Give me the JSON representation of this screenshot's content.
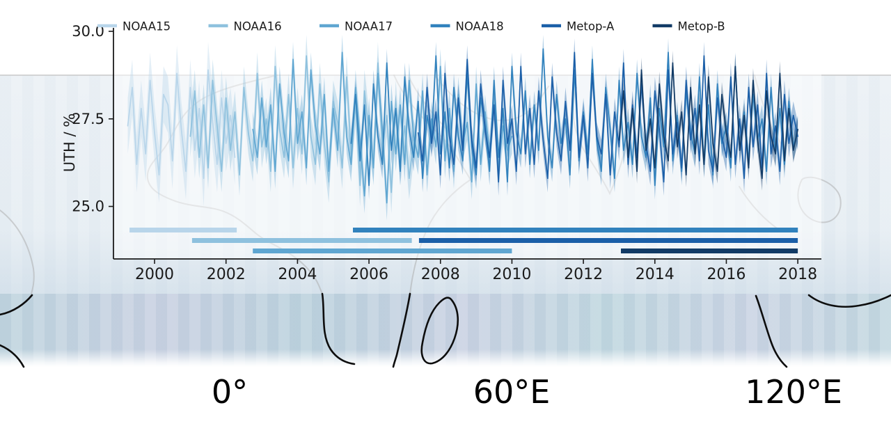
{
  "colors": {
    "axis": "#1a1a1a",
    "map_gridline": "#c8c8c8",
    "coast_upper": "#a9a9a9",
    "coast_band": "#0d0d0d",
    "plot_background": "rgba(255,255,255,0.5)",
    "legend_text": "#2b2b2b"
  },
  "map": {
    "lon_labels": [
      {
        "label": "0°"
      },
      {
        "label": "60°E"
      },
      {
        "label": "120°E"
      }
    ]
  },
  "chart_data": {
    "type": "line",
    "title": "",
    "ylabel": "UTH / %",
    "xlabel": "",
    "grid": false,
    "legend_position": "top",
    "x_range": [
      1998.85,
      2018.66
    ],
    "y_range": [
      23.5,
      30.0
    ],
    "x_ticks": [
      {
        "value": 2000,
        "label": "2000"
      },
      {
        "value": 2002,
        "label": "2002"
      },
      {
        "value": 2004,
        "label": "2004"
      },
      {
        "value": 2006,
        "label": "2006"
      },
      {
        "value": 2008,
        "label": "2008"
      },
      {
        "value": 2010,
        "label": "2010"
      },
      {
        "value": 2012,
        "label": "2012"
      },
      {
        "value": 2014,
        "label": "2014"
      },
      {
        "value": 2016,
        "label": "2016"
      },
      {
        "value": 2018,
        "label": "2018"
      }
    ],
    "y_ticks": [
      {
        "value": 25.0,
        "label": "25.0"
      },
      {
        "value": 27.5,
        "label": "27.5"
      },
      {
        "value": 30.0,
        "label": "30.0"
      }
    ],
    "legend": [
      "NOAA15",
      "NOAA16",
      "NOAA17",
      "NOAA18",
      "Metop-A",
      "Metop-B"
    ],
    "series": [
      {
        "name": "NOAA15",
        "color": "#b8d5ea",
        "start": 1999.25,
        "step": 0.125,
        "band": 0.8,
        "values": [
          27.3,
          28.4,
          26.2,
          27.8,
          26.5,
          28.6,
          27.1,
          25.9,
          28.2,
          27.9,
          26.3,
          28.8,
          27.2,
          26.0,
          28.4,
          26.6,
          27.8,
          25.8,
          28.9,
          27.4,
          26.2,
          28.1,
          26.8,
          27.6,
          26.4
        ]
      },
      {
        "name": "NOAA16",
        "color": "#8ec1de",
        "start": 2001.0,
        "step": 0.125,
        "band": 0.6,
        "values": [
          27.0,
          28.3,
          26.4,
          27.9,
          26.1,
          28.6,
          27.3,
          26.0,
          28.1,
          26.6,
          27.7,
          25.9,
          28.4,
          27.1,
          26.3,
          28.8,
          26.7,
          27.5,
          26.0,
          29.0,
          27.2,
          26.4,
          28.2,
          26.1,
          27.8,
          26.5,
          29.3,
          27.0,
          26.2,
          28.5,
          26.8,
          25.7,
          28.0,
          27.4,
          26.1,
          28.7,
          26.5,
          27.9,
          25.6,
          28.3,
          27.1,
          26.3,
          29.1,
          26.6,
          27.6,
          25.4,
          28.0,
          26.2,
          27.3,
          25.8,
          26.9
        ]
      },
      {
        "name": "NOAA17",
        "color": "#5fa6d1",
        "start": 2002.75,
        "step": 0.125,
        "band": 0.5,
        "values": [
          27.2,
          26.4,
          28.1,
          26.7,
          27.9,
          26.0,
          28.5,
          27.1,
          26.3,
          29.2,
          26.8,
          27.7,
          26.1,
          28.9,
          27.3,
          26.5,
          28.2,
          26.0,
          27.8,
          26.6,
          29.4,
          27.0,
          26.2,
          28.4,
          26.9,
          25.3,
          27.6,
          26.1,
          28.8,
          27.2,
          25.1,
          28.0,
          26.5,
          27.9,
          26.2,
          28.6,
          27.0,
          26.4,
          28.3,
          25.9,
          27.5,
          26.7,
          29.0,
          26.3,
          27.8,
          26.0,
          28.2,
          26.8,
          27.4,
          25.7,
          28.5,
          26.2,
          27.7,
          26.5,
          28.0,
          26.1,
          27.3,
          26.6,
          27.0
        ]
      },
      {
        "name": "NOAA18",
        "color": "#3182bd",
        "start": 2005.5,
        "step": 0.125,
        "band": 0.4,
        "values": [
          26.8,
          28.2,
          26.3,
          27.9,
          25.6,
          28.5,
          27.0,
          26.2,
          29.1,
          26.6,
          27.8,
          26.0,
          28.7,
          27.2,
          26.4,
          28.0,
          25.8,
          27.6,
          26.9,
          29.3,
          26.5,
          27.7,
          26.1,
          28.4,
          27.0,
          26.3,
          28.8,
          26.7,
          25.9,
          28.1,
          27.3,
          26.0,
          28.6,
          26.4,
          27.8,
          25.7,
          29.0,
          27.1,
          26.5,
          28.3,
          26.2,
          27.9,
          26.6,
          29.5,
          27.0,
          26.1,
          28.2,
          26.8,
          27.5,
          25.9,
          28.9,
          26.3,
          27.7,
          26.5,
          29.2,
          26.9,
          26.0,
          28.4,
          27.2,
          25.8,
          28.6,
          26.6,
          27.4,
          26.2,
          28.8,
          27.0,
          26.4,
          28.1,
          25.6,
          27.8,
          26.7,
          29.4,
          26.3,
          27.6,
          26.0,
          28.3,
          27.1,
          26.5,
          28.7,
          26.2,
          27.9,
          25.9,
          28.5,
          26.8,
          27.3,
          26.1,
          29.0,
          26.6,
          27.7,
          26.3,
          28.2,
          26.9,
          27.5,
          26.0,
          28.4,
          26.5,
          27.8,
          26.2,
          28.0,
          26.7,
          27.2
        ]
      },
      {
        "name": "Metop-A",
        "color": "#1b5fa8",
        "start": 2007.375,
        "step": 0.125,
        "band": 0.4,
        "values": [
          27.1,
          26.3,
          28.4,
          26.8,
          27.7,
          25.9,
          28.8,
          27.0,
          26.2,
          28.1,
          26.6,
          29.2,
          26.9,
          26.1,
          28.5,
          27.2,
          26.4,
          27.9,
          25.7,
          28.6,
          26.8,
          27.5,
          26.0,
          29.0,
          26.5,
          27.8,
          26.2,
          28.3,
          26.9,
          25.8,
          28.7,
          27.1,
          26.3,
          28.0,
          26.6,
          29.4,
          26.4,
          27.6,
          26.1,
          28.8,
          27.0,
          26.5,
          28.2,
          25.9,
          27.7,
          26.7,
          29.1,
          26.2,
          27.9,
          26.4,
          28.5,
          26.8,
          26.0,
          28.3,
          27.2,
          25.7,
          28.9,
          26.5,
          27.4,
          26.1,
          28.6,
          26.9,
          27.8,
          26.3,
          29.3,
          26.6,
          26.0,
          28.1,
          27.0,
          26.4,
          28.7,
          26.2,
          27.5,
          25.8,
          28.4,
          26.7,
          27.9,
          26.1,
          28.8,
          26.5,
          27.3,
          26.0,
          28.2,
          26.8,
          27.6,
          27.0
        ]
      },
      {
        "name": "Metop-B",
        "color": "#123b66",
        "start": 2013.0,
        "step": 0.125,
        "band": 0.35,
        "values": [
          26.9,
          28.3,
          26.4,
          27.8,
          26.0,
          28.9,
          26.6,
          27.5,
          26.1,
          28.5,
          27.0,
          26.3,
          29.1,
          26.7,
          27.7,
          25.9,
          28.4,
          26.5,
          27.9,
          26.2,
          28.7,
          26.8,
          26.0,
          28.2,
          27.1,
          26.4,
          29.0,
          26.6,
          27.6,
          26.1,
          28.6,
          26.9,
          25.8,
          28.3,
          27.0,
          26.5,
          28.8,
          26.3,
          27.8,
          26.6,
          27.2
        ]
      }
    ],
    "availability": [
      {
        "name": "NOAA15",
        "start": 1999.3,
        "end": 2002.3,
        "row": 0
      },
      {
        "name": "NOAA18",
        "start": 2005.55,
        "end": 2018.0,
        "row": 0
      },
      {
        "name": "NOAA16",
        "start": 2001.05,
        "end": 2007.2,
        "row": 1
      },
      {
        "name": "Metop-A",
        "start": 2007.4,
        "end": 2018.0,
        "row": 1
      },
      {
        "name": "NOAA17",
        "start": 2002.75,
        "end": 2010.0,
        "row": 2
      },
      {
        "name": "Metop-B",
        "start": 2013.05,
        "end": 2018.0,
        "row": 2
      }
    ]
  }
}
